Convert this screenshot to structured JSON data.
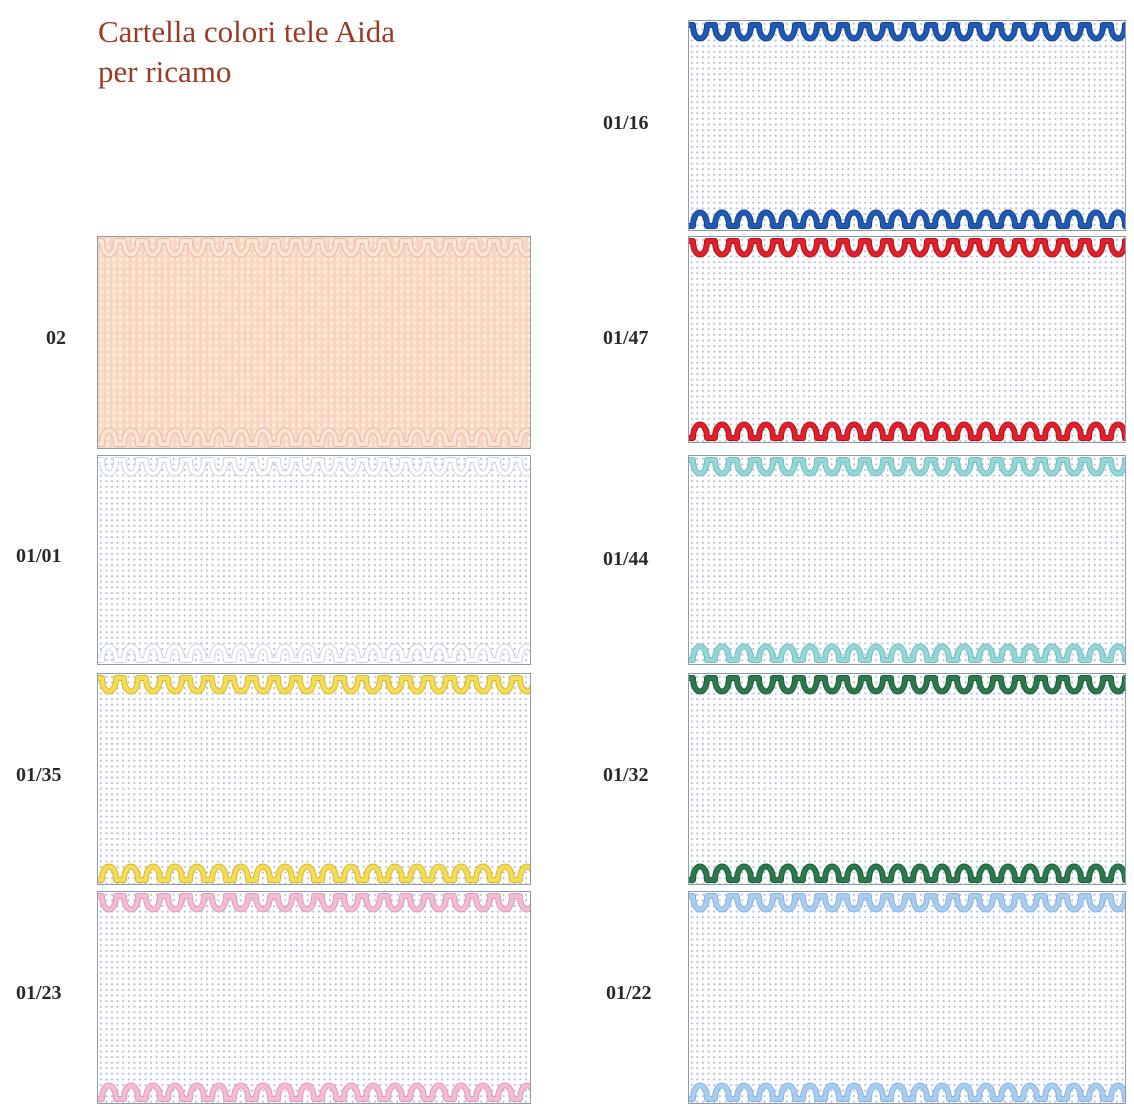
{
  "title": {
    "line1": "Cartella colori tele Aida",
    "line2": "per ricamo"
  },
  "swatches": [
    {
      "code": "02",
      "fabric": "peach",
      "edge_color": "#fce4d6",
      "edge_outline": "#e8b9a0"
    },
    {
      "code": "01/01",
      "fabric": "white",
      "edge_color": "#ffffff",
      "edge_outline": "#c9d3e6"
    },
    {
      "code": "01/35",
      "fabric": "white",
      "edge_color": "#f5dc55",
      "edge_outline": "#d9b82a"
    },
    {
      "code": "01/23",
      "fabric": "white",
      "edge_color": "#f3bcd4",
      "edge_outline": "#e29ab8"
    },
    {
      "code": "01/16",
      "fabric": "white",
      "edge_color": "#1f5bb5",
      "edge_outline": "#134091"
    },
    {
      "code": "01/47",
      "fabric": "white",
      "edge_color": "#e3202a",
      "edge_outline": "#b31219"
    },
    {
      "code": "01/44",
      "fabric": "white",
      "edge_color": "#95d6d7",
      "edge_outline": "#6fbfc1"
    },
    {
      "code": "01/32",
      "fabric": "white",
      "edge_color": "#2a7a4c",
      "edge_outline": "#1d5c38"
    },
    {
      "code": "01/22",
      "fabric": "white",
      "edge_color": "#a9cdef",
      "edge_outline": "#85b3e3"
    }
  ]
}
